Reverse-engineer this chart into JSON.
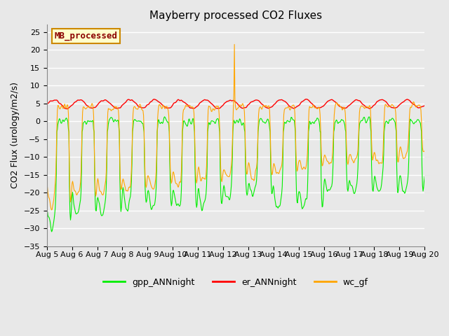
{
  "title": "Mayberry processed CO2 Fluxes",
  "ylabel": "CO2 Flux (urology/m2/s)",
  "ylim": [
    -35,
    27
  ],
  "yticks": [
    -35,
    -30,
    -25,
    -20,
    -15,
    -10,
    -5,
    0,
    5,
    10,
    15,
    20,
    25
  ],
  "xlabel_dates": [
    "Aug 5",
    "Aug 6",
    "Aug 7",
    "Aug 8",
    "Aug 9",
    "Aug 10",
    "Aug 11",
    "Aug 12",
    "Aug 13",
    "Aug 14",
    "Aug 15",
    "Aug 16",
    "Aug 17",
    "Aug 18",
    "Aug 19",
    "Aug 20"
  ],
  "legend_label": "MB_processed",
  "legend_label_color": "#8B0000",
  "legend_label_bg": "#FFFFCC",
  "legend_label_border": "#CC8800",
  "line_colors": {
    "gpp": "#00EE00",
    "er": "#FF0000",
    "wc": "#FFA500"
  },
  "line_widths": {
    "gpp": 0.8,
    "er": 1.0,
    "wc": 0.8
  },
  "bg_color": "#E8E8E8",
  "fig_bg": "#E8E8E8",
  "title_fontsize": 11,
  "tick_fontsize": 8,
  "legend_fontsize": 9
}
